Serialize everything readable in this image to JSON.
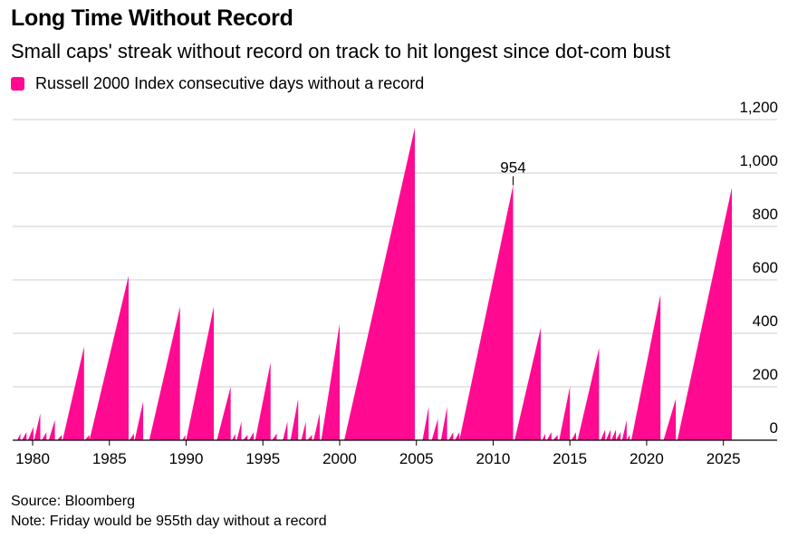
{
  "header": {
    "title": "Long Time Without Record",
    "subtitle": "Small caps' streak without record on track to hit longest since dot-com bust"
  },
  "legend": {
    "label": "Russell 2000 Index consecutive days without a record"
  },
  "footer": {
    "source": "Source: Bloomberg",
    "note": "Note: Friday would be 955th day without a record"
  },
  "colors": {
    "series": "#ff0a91",
    "grid": "#cccccc",
    "axis": "#000000"
  },
  "chart_data": {
    "type": "area",
    "xlabel": "",
    "ylabel": "",
    "xlim": [
      1978.7,
      2028.5
    ],
    "ylim": [
      0,
      1200
    ],
    "x_ticks": [
      1980,
      1985,
      1990,
      1995,
      2000,
      2005,
      2010,
      2015,
      2020,
      2025
    ],
    "x_tick_labels": [
      "1980",
      "1985",
      "1990",
      "1995",
      "2000",
      "2005",
      "2010",
      "2015",
      "2020",
      "2025"
    ],
    "y_ticks": [
      0,
      200,
      400,
      600,
      800,
      1000,
      1200
    ],
    "y_tick_labels": [
      "0",
      "200",
      "400",
      "600",
      "800",
      "1,000",
      "1,200"
    ],
    "grid": true,
    "legend_position": "top-left",
    "series": [
      {
        "name": "Russell 2000 Index consecutive days without a record",
        "color": "#ff0a91",
        "streaks": [
          {
            "start": 1979.0,
            "end": 1979.2,
            "peak": 25
          },
          {
            "start": 1979.3,
            "end": 1979.6,
            "peak": 30
          },
          {
            "start": 1979.7,
            "end": 1980.05,
            "peak": 50
          },
          {
            "start": 1980.1,
            "end": 1980.5,
            "peak": 100
          },
          {
            "start": 1980.6,
            "end": 1980.9,
            "peak": 30
          },
          {
            "start": 1981.05,
            "end": 1981.45,
            "peak": 75
          },
          {
            "start": 1981.6,
            "end": 1981.9,
            "peak": 20
          },
          {
            "start": 1981.95,
            "end": 1983.35,
            "peak": 350
          },
          {
            "start": 1983.4,
            "end": 1983.7,
            "peak": 20
          },
          {
            "start": 1983.7,
            "end": 1986.25,
            "peak": 615
          },
          {
            "start": 1986.3,
            "end": 1986.6,
            "peak": 25
          },
          {
            "start": 1986.65,
            "end": 1987.2,
            "peak": 145
          },
          {
            "start": 1987.6,
            "end": 1989.6,
            "peak": 500
          },
          {
            "start": 1989.75,
            "end": 1989.95,
            "peak": 20
          },
          {
            "start": 1990.0,
            "end": 1991.8,
            "peak": 500
          },
          {
            "start": 1992.0,
            "end": 1992.9,
            "peak": 200
          },
          {
            "start": 1993.0,
            "end": 1993.2,
            "peak": 25
          },
          {
            "start": 1993.3,
            "end": 1993.6,
            "peak": 70
          },
          {
            "start": 1993.7,
            "end": 1994.0,
            "peak": 20
          },
          {
            "start": 1994.1,
            "end": 1994.4,
            "peak": 30
          },
          {
            "start": 1994.5,
            "end": 1995.5,
            "peak": 290
          },
          {
            "start": 1995.6,
            "end": 1995.9,
            "peak": 25
          },
          {
            "start": 1996.3,
            "end": 1996.6,
            "peak": 70
          },
          {
            "start": 1996.8,
            "end": 1997.3,
            "peak": 155
          },
          {
            "start": 1997.5,
            "end": 1997.8,
            "peak": 70
          },
          {
            "start": 1997.9,
            "end": 1998.2,
            "peak": 20
          },
          {
            "start": 1998.3,
            "end": 1998.7,
            "peak": 100
          },
          {
            "start": 1998.8,
            "end": 2000.0,
            "peak": 435
          },
          {
            "start": 2000.3,
            "end": 2004.9,
            "peak": 1170
          },
          {
            "start": 2005.4,
            "end": 2005.8,
            "peak": 125
          },
          {
            "start": 2006.0,
            "end": 2006.4,
            "peak": 80
          },
          {
            "start": 2006.6,
            "end": 2007.0,
            "peak": 125
          },
          {
            "start": 2007.1,
            "end": 2007.4,
            "peak": 30
          },
          {
            "start": 2007.5,
            "end": 2007.8,
            "peak": 30
          },
          {
            "start": 2007.8,
            "end": 2011.3,
            "peak": 954
          },
          {
            "start": 2011.4,
            "end": 2013.1,
            "peak": 420
          },
          {
            "start": 2013.2,
            "end": 2013.4,
            "peak": 25
          },
          {
            "start": 2013.5,
            "end": 2013.8,
            "peak": 30
          },
          {
            "start": 2013.9,
            "end": 2014.2,
            "peak": 20
          },
          {
            "start": 2014.3,
            "end": 2015.0,
            "peak": 200
          },
          {
            "start": 2015.1,
            "end": 2015.4,
            "peak": 30
          },
          {
            "start": 2015.5,
            "end": 2016.9,
            "peak": 345
          },
          {
            "start": 2017.0,
            "end": 2017.3,
            "peak": 40
          },
          {
            "start": 2017.35,
            "end": 2017.65,
            "peak": 40
          },
          {
            "start": 2017.7,
            "end": 2018.0,
            "peak": 40
          },
          {
            "start": 2018.0,
            "end": 2018.3,
            "peak": 30
          },
          {
            "start": 2018.4,
            "end": 2018.7,
            "peak": 75
          },
          {
            "start": 2018.7,
            "end": 2018.9,
            "peak": 20
          },
          {
            "start": 2019.0,
            "end": 2020.9,
            "peak": 545
          },
          {
            "start": 2021.1,
            "end": 2021.9,
            "peak": 155
          },
          {
            "start": 2022.0,
            "end": 2025.55,
            "peak": 945
          }
        ]
      }
    ],
    "annotations": [
      {
        "x": 2011.3,
        "y": 954,
        "text": "954"
      }
    ]
  }
}
